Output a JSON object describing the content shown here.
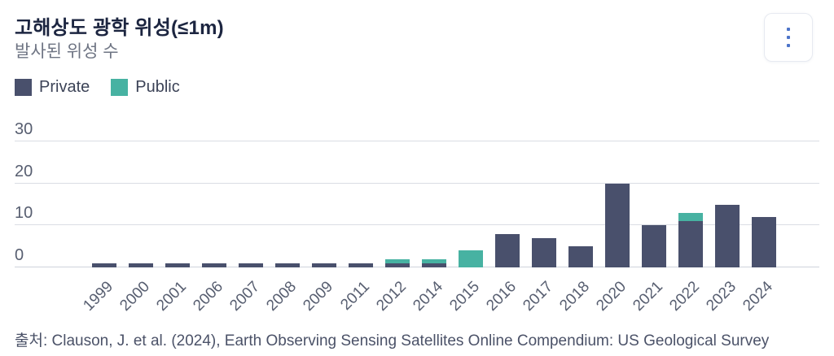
{
  "header": {
    "title": "고해상도 광학 위성(≤1m)",
    "subtitle": "발사된 위성 수",
    "menu_icon": "kebab-menu-icon"
  },
  "legend": {
    "items": [
      {
        "label": "Private",
        "color": "#49506c"
      },
      {
        "label": "Public",
        "color": "#47b2a2"
      }
    ]
  },
  "chart_data": {
    "type": "bar",
    "stacked": true,
    "title": "고해상도 광학 위성(≤1m)",
    "subtitle": "발사된 위성 수",
    "categories": [
      "1999",
      "2000",
      "2001",
      "2006",
      "2007",
      "2008",
      "2009",
      "2011",
      "2012",
      "2014",
      "2015",
      "2016",
      "2017",
      "2018",
      "2020",
      "2021",
      "2022",
      "2023",
      "2024"
    ],
    "series": [
      {
        "name": "Private",
        "color": "#49506c",
        "values": [
          1,
          1,
          1,
          1,
          1,
          1,
          1,
          1,
          1,
          1,
          0,
          8,
          7,
          5,
          20,
          10,
          11,
          15,
          12
        ]
      },
      {
        "name": "Public",
        "color": "#47b2a2",
        "values": [
          0,
          0,
          0,
          0,
          0,
          0,
          0,
          0,
          1,
          1,
          4,
          0,
          0,
          0,
          0,
          0,
          2,
          0,
          0
        ]
      }
    ],
    "yticks": [
      0,
      10,
      20,
      30
    ],
    "ylim": [
      0,
      35.6
    ],
    "xlabel": "",
    "ylabel": "발사된 위성 수",
    "grid": true,
    "legend_position": "top-left",
    "gridline_color": "#dadde4",
    "axis_text_color": "#575e70"
  },
  "footer": {
    "source": "출처: Clauson, J. et al. (2024), Earth Observing Sensing Satellites Online Compendium: US Geological Survey"
  }
}
